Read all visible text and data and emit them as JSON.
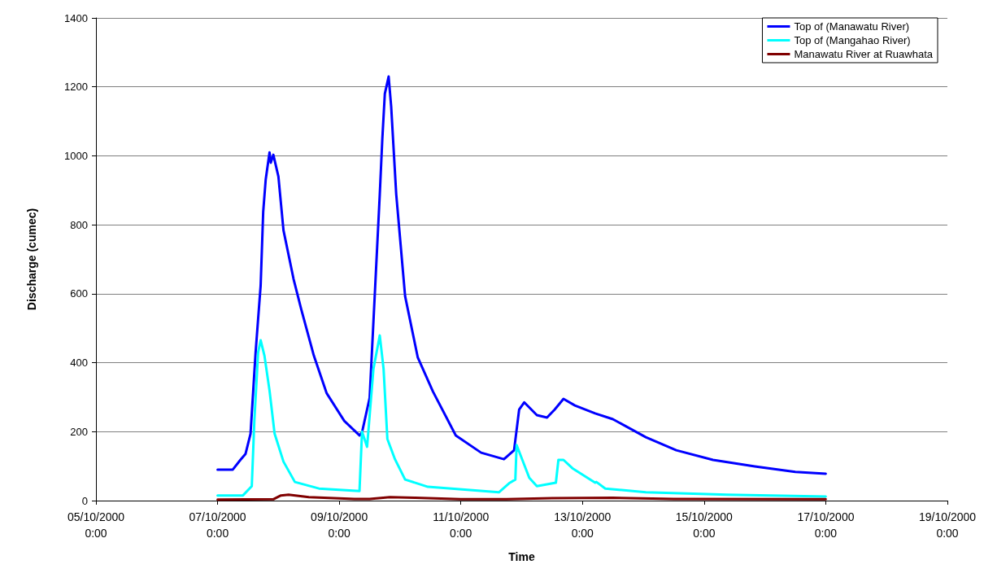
{
  "chart_data": {
    "type": "line",
    "xlabel": "Time",
    "ylabel": "Discharge (cumec)",
    "xlim": [
      "2000-10-05T00:00",
      "2000-10-19T00:00"
    ],
    "xticks": [
      {
        "value": "2000-10-05T00:00",
        "label": "05/10/2000\n0:00"
      },
      {
        "value": "2000-10-07T00:00",
        "label": "07/10/2000\n0:00"
      },
      {
        "value": "2000-10-09T00:00",
        "label": "09/10/2000\n0:00"
      },
      {
        "value": "2000-10-11T00:00",
        "label": "11/10/2000\n0:00"
      },
      {
        "value": "2000-10-13T00:00",
        "label": "13/10/2000\n0:00"
      },
      {
        "value": "2000-10-15T00:00",
        "label": "15/10/2000\n0:00"
      },
      {
        "value": "2000-10-17T00:00",
        "label": "17/10/2000\n0:00"
      },
      {
        "value": "2000-10-19T00:00",
        "label": "19/10/2000\n0:00"
      }
    ],
    "ylim": [
      0,
      1400
    ],
    "yticks": [
      0,
      200,
      400,
      600,
      800,
      1000,
      1200,
      1400
    ],
    "grid": "y",
    "legend": "top right",
    "marker": "none",
    "line_style": "solid",
    "series": [
      {
        "name": "Top of (Manawatu River)",
        "color": "#0000ff",
        "x": [
          "2000-10-07T00:00",
          "2000-10-07T06:00",
          "2000-10-07T09:00",
          "2000-10-07T11:00",
          "2000-10-07T13:00",
          "2000-10-07T15:00",
          "2000-10-07T17:00",
          "2000-10-07T18:00",
          "2000-10-07T19:00",
          "2000-10-07T20:30",
          "2000-10-07T21:00",
          "2000-10-07T22:00",
          "2000-10-08T00:00",
          "2000-10-08T02:00",
          "2000-10-08T06:00",
          "2000-10-08T09:00",
          "2000-10-08T14:00",
          "2000-10-08T19:00",
          "2000-10-09T02:00",
          "2000-10-09T08:00",
          "2000-10-09T09:00",
          "2000-10-09T12:00",
          "2000-10-09T14:00",
          "2000-10-09T16:00",
          "2000-10-09T17:00",
          "2000-10-09T18:00",
          "2000-10-09T19:30",
          "2000-10-09T20:30",
          "2000-10-09T22:30",
          "2000-10-10T02:00",
          "2000-10-10T07:00",
          "2000-10-10T13:00",
          "2000-10-10T22:00",
          "2000-10-11T08:00",
          "2000-10-11T17:00",
          "2000-10-11T21:00",
          "2000-10-11T23:00",
          "2000-10-12T01:00",
          "2000-10-12T06:00",
          "2000-10-12T10:00",
          "2000-10-12T13:00",
          "2000-10-12T16:30",
          "2000-10-12T21:00",
          "2000-10-13T05:00",
          "2000-10-13T12:00",
          "2000-10-14T01:00",
          "2000-10-14T13:00",
          "2000-10-15T03:30",
          "2000-10-15T20:00",
          "2000-10-16T12:00",
          "2000-10-17T00:00"
        ],
        "values": [
          90,
          90,
          118,
          135,
          194,
          430,
          625,
          838,
          932,
          1010,
          980,
          1003,
          940,
          784,
          642,
          555,
          420,
          312,
          231,
          189,
          198,
          298,
          593,
          888,
          1048,
          1180,
          1230,
          1143,
          888,
          593,
          415,
          316,
          189,
          139,
          120,
          146,
          264,
          285,
          248,
          241,
          264,
          295,
          276,
          253,
          236,
          184,
          146,
          118,
          99,
          83,
          78
        ]
      },
      {
        "name": "Top of (Mangahao River)",
        "color": "#00ffff",
        "x": [
          "2000-10-07T00:00",
          "2000-10-07T10:00",
          "2000-10-07T13:30",
          "2000-10-07T14:30",
          "2000-10-07T16:00",
          "2000-10-07T17:00",
          "2000-10-07T18:30",
          "2000-10-07T20:30",
          "2000-10-07T22:30",
          "2000-10-08T02:00",
          "2000-10-08T06:30",
          "2000-10-08T16:00",
          "2000-10-09T08:00",
          "2000-10-09T09:00",
          "2000-10-09T11:00",
          "2000-10-09T13:30",
          "2000-10-09T16:00",
          "2000-10-09T17:30",
          "2000-10-09T19:00",
          "2000-10-09T22:00",
          "2000-10-10T02:00",
          "2000-10-10T11:00",
          "2000-10-11T15:00",
          "2000-10-11T19:00",
          "2000-10-11T21:30",
          "2000-10-11T22:00",
          "2000-10-12T03:00",
          "2000-10-12T06:00",
          "2000-10-12T13:30",
          "2000-10-12T14:30",
          "2000-10-12T16:30",
          "2000-10-12T20:00",
          "2000-10-13T05:00",
          "2000-10-13T05:30",
          "2000-10-13T09:00",
          "2000-10-14T01:00",
          "2000-10-15T09:00",
          "2000-10-17T00:00"
        ],
        "values": [
          15,
          15,
          42,
          231,
          430,
          465,
          420,
          319,
          194,
          113,
          54,
          35,
          28,
          200,
          156,
          382,
          479,
          382,
          179,
          120,
          61,
          40,
          24,
          50,
          61,
          161,
          66,
          42,
          52,
          118,
          118,
          94,
          52,
          54,
          35,
          24,
          17,
          12
        ]
      },
      {
        "name": "Manawatu River at Ruawhata",
        "color": "#800000",
        "x": [
          "2000-10-07T00:00",
          "2000-10-07T22:00",
          "2000-10-08T01:00",
          "2000-10-08T04:00",
          "2000-10-08T12:00",
          "2000-10-09T06:00",
          "2000-10-09T12:00",
          "2000-10-09T20:00",
          "2000-10-10T06:00",
          "2000-10-11T00:00",
          "2000-10-11T18:00",
          "2000-10-12T12:00",
          "2000-10-13T12:00",
          "2000-10-14T12:00",
          "2000-10-17T00:00"
        ],
        "values": [
          3,
          4,
          15,
          17,
          10,
          5,
          5,
          10,
          8,
          4,
          4,
          7,
          8,
          5,
          4
        ]
      }
    ]
  }
}
